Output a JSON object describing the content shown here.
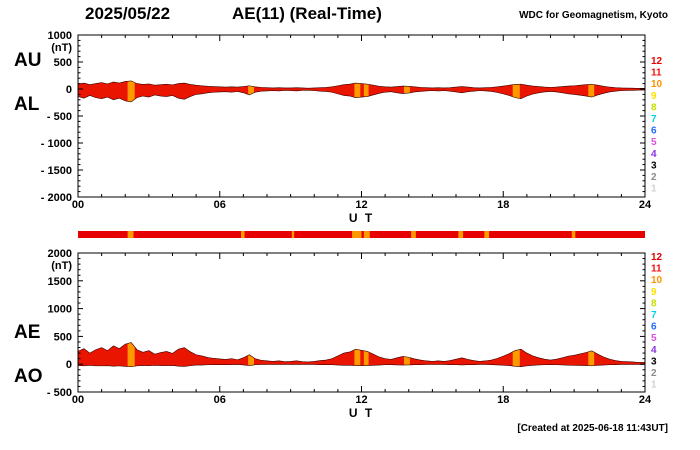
{
  "header": {
    "date": "2025/05/22",
    "title": "AE(11) (Real-Time)",
    "source": "WDC for Geomagnetism, Kyoto"
  },
  "footer": {
    "created_at": "[Created at 2025-06-18 11:43UT]"
  },
  "station_legend": {
    "description": "number-of-stations color scale",
    "values": [
      "12",
      "11",
      "10",
      "9",
      "8",
      "7",
      "6",
      "5",
      "4",
      "3",
      "2",
      "1"
    ],
    "colors": [
      "#e60000",
      "#ee1111",
      "#ff9100",
      "#ffe100",
      "#c8e100",
      "#00d2e6",
      "#2369ff",
      "#dc50dc",
      "#8c32e6",
      "#000000",
      "#8c8c8c",
      "#d2d2d2"
    ]
  },
  "availability_bar": {
    "base_color": "#e60000",
    "highlight_color": "#ff9900",
    "segments_hours": [
      [
        2.1,
        2.35
      ],
      [
        6.9,
        7.05
      ],
      [
        9.05,
        9.15
      ],
      [
        11.6,
        12.0
      ],
      [
        12.1,
        12.35
      ],
      [
        14.1,
        14.3
      ],
      [
        16.1,
        16.3
      ],
      [
        17.2,
        17.4
      ],
      [
        20.9,
        21.05
      ]
    ]
  },
  "chart_data": [
    {
      "type": "area",
      "panel": "AU-AL",
      "name": "Upper panel: AU and AL auroral electrojet indices",
      "ylabel": "(nT)",
      "xlabel": "U T",
      "ylim": [
        -2000,
        1000
      ],
      "yticks": [
        {
          "v": 1000,
          "label": "1000"
        },
        {
          "v": 500,
          "label": "500"
        },
        {
          "v": 0,
          "label": "0"
        },
        {
          "v": -500,
          "label": "- 500"
        },
        {
          "v": -1000,
          "label": "- 1000"
        },
        {
          "v": -1500,
          "label": "- 1500"
        },
        {
          "v": -2000,
          "label": "- 2000"
        }
      ],
      "xlim_hours": [
        0,
        24
      ],
      "xticks": [
        {
          "h": 0,
          "label": "00"
        },
        {
          "h": 6,
          "label": "06"
        },
        {
          "h": 12,
          "label": "12"
        },
        {
          "h": 18,
          "label": "18"
        },
        {
          "h": 24,
          "label": "24"
        }
      ],
      "sample_interval_hours": 0.25,
      "fill_color": "#ea1500",
      "highlight_color": "#ff9900",
      "highlight_segments_hours": [
        [
          2.1,
          2.4
        ],
        [
          7.2,
          7.45
        ],
        [
          11.7,
          11.95
        ],
        [
          12.1,
          12.3
        ],
        [
          13.8,
          14.05
        ],
        [
          18.4,
          18.7
        ],
        [
          21.6,
          21.85
        ]
      ],
      "left_axis_labels": [
        "AU",
        "AL"
      ],
      "series": [
        {
          "name": "AU",
          "values": [
            90,
            110,
            80,
            100,
            120,
            95,
            130,
            110,
            140,
            150,
            100,
            85,
            95,
            70,
            80,
            90,
            75,
            100,
            110,
            85,
            70,
            60,
            50,
            45,
            40,
            35,
            40,
            35,
            45,
            60,
            40,
            30,
            25,
            20,
            25,
            20,
            20,
            25,
            20,
            15,
            20,
            25,
            30,
            40,
            60,
            80,
            90,
            110,
            100,
            90,
            70,
            50,
            40,
            35,
            45,
            55,
            50,
            40,
            30,
            25,
            20,
            25,
            20,
            25,
            35,
            45,
            35,
            25,
            20,
            25,
            30,
            40,
            55,
            70,
            85,
            90,
            70,
            55,
            45,
            35,
            30,
            35,
            45,
            55,
            60,
            70,
            80,
            90,
            70,
            50,
            35,
            25,
            20,
            18,
            15,
            12
          ]
        },
        {
          "name": "AL",
          "values": [
            -140,
            -170,
            -120,
            -160,
            -180,
            -150,
            -200,
            -170,
            -220,
            -240,
            -160,
            -130,
            -150,
            -110,
            -130,
            -140,
            -120,
            -170,
            -190,
            -140,
            -100,
            -90,
            -70,
            -60,
            -55,
            -50,
            -60,
            -45,
            -70,
            -110,
            -60,
            -40,
            -35,
            -30,
            -35,
            -25,
            -30,
            -35,
            -25,
            -25,
            -30,
            -40,
            -45,
            -60,
            -90,
            -120,
            -130,
            -160,
            -150,
            -140,
            -110,
            -80,
            -60,
            -50,
            -70,
            -85,
            -75,
            -55,
            -45,
            -35,
            -30,
            -35,
            -30,
            -40,
            -55,
            -70,
            -50,
            -40,
            -30,
            -35,
            -45,
            -65,
            -90,
            -120,
            -160,
            -180,
            -130,
            -95,
            -70,
            -55,
            -45,
            -55,
            -70,
            -90,
            -100,
            -115,
            -130,
            -150,
            -110,
            -80,
            -55,
            -40,
            -30,
            -28,
            -25,
            -20
          ]
        }
      ]
    },
    {
      "type": "area",
      "panel": "AE-AO",
      "name": "Lower panel: AE and AO auroral electrojet indices",
      "ylabel": "(nT)",
      "xlabel": "U T",
      "ylim": [
        -500,
        2000
      ],
      "yticks": [
        {
          "v": 2000,
          "label": "2000"
        },
        {
          "v": 1500,
          "label": "1500"
        },
        {
          "v": 1000,
          "label": "1000"
        },
        {
          "v": 500,
          "label": "500"
        },
        {
          "v": 0,
          "label": "0"
        },
        {
          "v": -500,
          "label": "- 500"
        }
      ],
      "xlim_hours": [
        0,
        24
      ],
      "xticks": [
        {
          "h": 0,
          "label": "00"
        },
        {
          "h": 6,
          "label": "06"
        },
        {
          "h": 12,
          "label": "12"
        },
        {
          "h": 18,
          "label": "18"
        },
        {
          "h": 24,
          "label": "24"
        }
      ],
      "sample_interval_hours": 0.25,
      "fill_color": "#ea1500",
      "highlight_color": "#ff9900",
      "highlight_segments_hours": [
        [
          2.1,
          2.4
        ],
        [
          7.2,
          7.45
        ],
        [
          11.7,
          11.95
        ],
        [
          12.1,
          12.3
        ],
        [
          13.8,
          14.05
        ],
        [
          18.4,
          18.7
        ],
        [
          21.6,
          21.85
        ]
      ],
      "left_axis_labels": [
        "AE",
        "AO"
      ],
      "series": [
        {
          "name": "AE",
          "values": [
            230,
            280,
            200,
            260,
            300,
            245,
            330,
            280,
            360,
            390,
            260,
            215,
            245,
            180,
            210,
            230,
            195,
            270,
            300,
            225,
            170,
            150,
            120,
            105,
            95,
            85,
            100,
            80,
            115,
            170,
            100,
            70,
            60,
            50,
            60,
            45,
            50,
            60,
            45,
            40,
            50,
            65,
            75,
            100,
            150,
            200,
            220,
            270,
            250,
            230,
            180,
            130,
            100,
            85,
            115,
            140,
            125,
            95,
            75,
            60,
            50,
            60,
            50,
            65,
            90,
            115,
            85,
            65,
            50,
            60,
            75,
            105,
            145,
            190,
            245,
            270,
            200,
            150,
            115,
            90,
            75,
            90,
            115,
            145,
            160,
            185,
            210,
            240,
            180,
            130,
            90,
            65,
            50,
            46,
            40,
            32
          ]
        },
        {
          "name": "AO",
          "values": [
            -25,
            -30,
            -20,
            -30,
            -30,
            -28,
            -35,
            -30,
            -40,
            -45,
            -30,
            -23,
            -28,
            -20,
            -25,
            -25,
            -23,
            -35,
            -40,
            -28,
            -15,
            -15,
            -10,
            -8,
            -8,
            -8,
            -10,
            -5,
            -13,
            -25,
            -10,
            -5,
            -5,
            -5,
            -5,
            -3,
            -5,
            -5,
            -3,
            -5,
            -5,
            -8,
            -8,
            -10,
            -15,
            -20,
            -20,
            -25,
            -25,
            -25,
            -20,
            -15,
            -10,
            -8,
            -13,
            -15,
            -13,
            -8,
            -8,
            -5,
            -5,
            -5,
            -5,
            -8,
            -10,
            -13,
            -8,
            -8,
            -5,
            -5,
            -8,
            -13,
            -18,
            -25,
            -38,
            -45,
            -30,
            -20,
            -13,
            -10,
            -8,
            -10,
            -13,
            -18,
            -20,
            -23,
            -25,
            -30,
            -20,
            -15,
            -10,
            -8,
            -5,
            -5,
            -5,
            -4
          ]
        }
      ]
    }
  ]
}
